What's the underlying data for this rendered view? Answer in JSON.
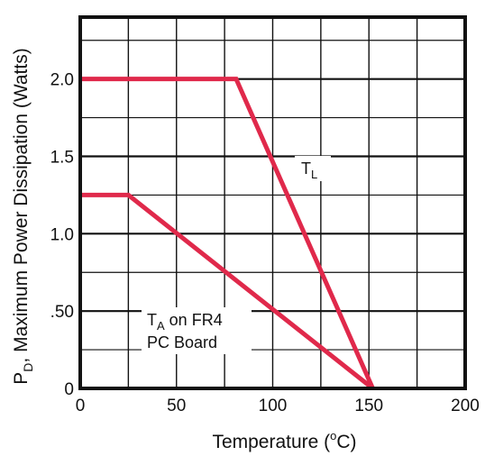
{
  "chart_data": {
    "type": "line",
    "title": "",
    "xlabel": {
      "prefix": "Temperature (",
      "sup": "o",
      "suffix": "C)"
    },
    "ylabel": {
      "main": "P",
      "sub": "D",
      "rest": ", Maximum Power Dissipation (Watts)"
    },
    "xlim": [
      0,
      200
    ],
    "ylim": [
      0,
      2.4
    ],
    "x_ticks": [
      {
        "value": 0,
        "label": "0"
      },
      {
        "value": 50,
        "label": "50"
      },
      {
        "value": 100,
        "label": "100"
      },
      {
        "value": 150,
        "label": "150"
      },
      {
        "value": 200,
        "label": "200"
      }
    ],
    "y_ticks": [
      {
        "value": 0,
        "label": "0"
      },
      {
        "value": 0.5,
        "label": ".50"
      },
      {
        "value": 1.0,
        "label": "1.0"
      },
      {
        "value": 1.5,
        "label": "1.5"
      },
      {
        "value": 2.0,
        "label": "2.0"
      }
    ],
    "x_grid_step": 25,
    "y_grid_step": 0.25,
    "grid": true,
    "line_color": "#e0294b",
    "series": [
      {
        "annotation": {
          "main": "T",
          "sub": "L",
          "rest": ""
        },
        "x": [
          0,
          81,
          152
        ],
        "y": [
          2.0,
          2.0,
          0
        ]
      },
      {
        "annotation": {
          "main": "T",
          "sub": "A",
          "rest": " on FR4",
          "line2": "PC Board"
        },
        "x": [
          0,
          25,
          152
        ],
        "y": [
          1.25,
          1.25,
          0
        ]
      }
    ]
  }
}
